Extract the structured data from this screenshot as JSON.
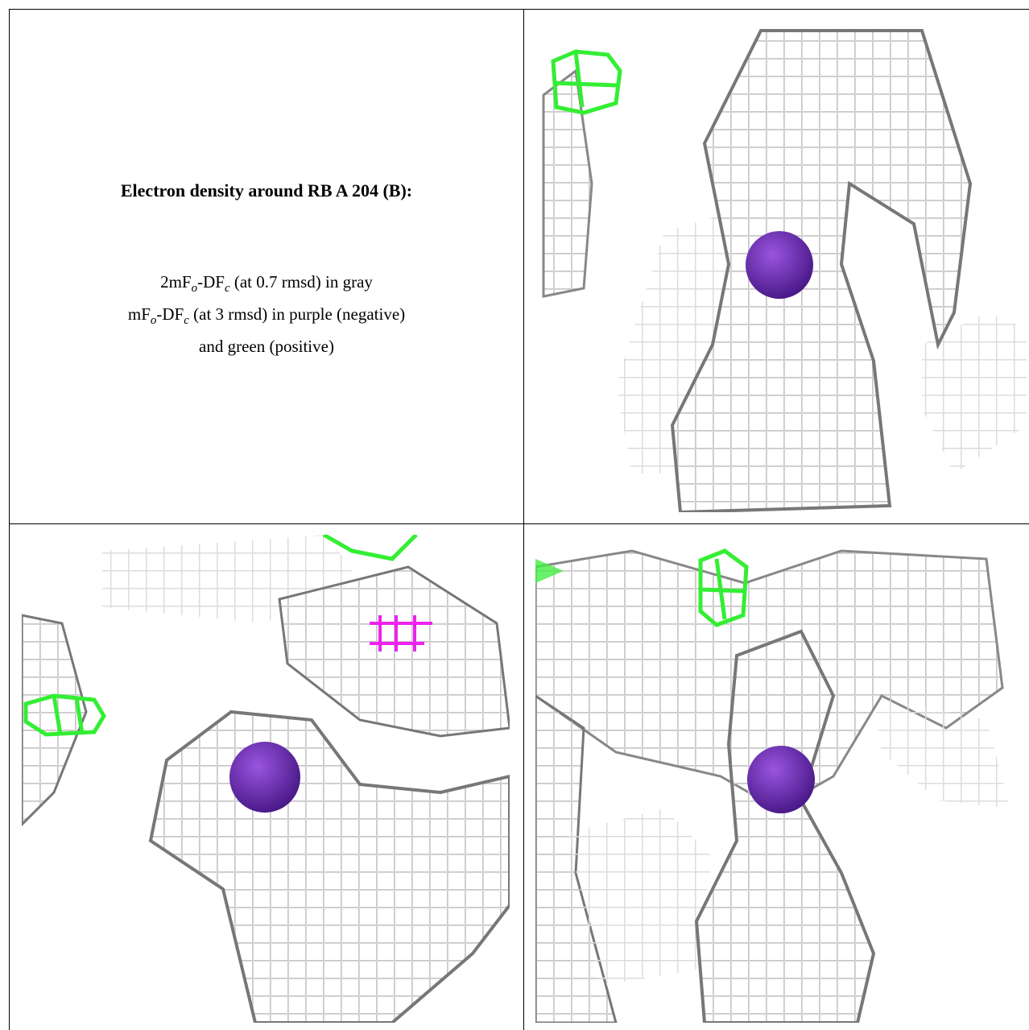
{
  "title": "Electron density around RB A 204 (B):",
  "legend_lines": [
    [
      "2mF",
      "o",
      "-DF",
      "c",
      " (at 0.7 rmsd) in gray"
    ],
    [
      "mF",
      "o",
      "-DF",
      "c",
      " (at 3 rmsd) in purple (negative)"
    ],
    [
      "and green (positive)"
    ]
  ]
}
